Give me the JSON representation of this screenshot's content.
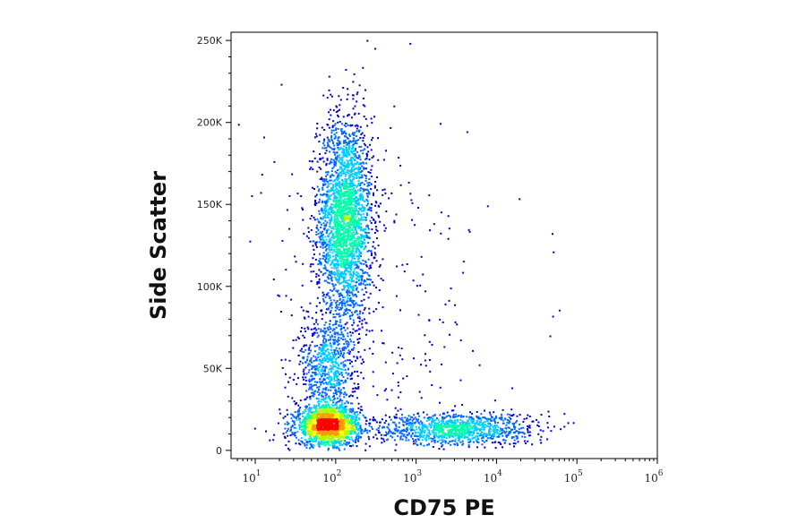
{
  "chart_data": {
    "type": "scatter",
    "xlabel": "CD75 PE",
    "ylabel": "Side Scatter",
    "x_scale": "log",
    "xlim": [
      5,
      1000000
    ],
    "ylim": [
      -5000,
      255000
    ],
    "x_ticks": [
      {
        "value": 10,
        "base": "10",
        "exp": "1"
      },
      {
        "value": 100,
        "base": "10",
        "exp": "2"
      },
      {
        "value": 1000,
        "base": "10",
        "exp": "3"
      },
      {
        "value": 10000,
        "base": "10",
        "exp": "4"
      },
      {
        "value": 100000,
        "base": "10",
        "exp": "5"
      },
      {
        "value": 1000000,
        "base": "10",
        "exp": "6"
      }
    ],
    "y_ticks": [
      {
        "value": 0,
        "label": "0"
      },
      {
        "value": 50000,
        "label": "50K"
      },
      {
        "value": 100000,
        "label": "100K"
      },
      {
        "value": 150000,
        "label": "150K"
      },
      {
        "value": 200000,
        "label": "200K"
      },
      {
        "value": 250000,
        "label": "250K"
      }
    ],
    "density_colormap": [
      "#0000cc",
      "#0066ff",
      "#00ccff",
      "#00ffaa",
      "#aaff00",
      "#ffff00",
      "#ff9900",
      "#ff0000"
    ],
    "populations": [
      {
        "x_center": 130,
        "x_sigma_log10": 0.17,
        "y_center": 140000,
        "y_sigma": 32000,
        "points": 2600
      },
      {
        "x_center": 80,
        "x_sigma_log10": 0.2,
        "y_center": 15000,
        "y_sigma": 6000,
        "points": 1700
      },
      {
        "x_center": 80,
        "x_sigma_log10": 0.18,
        "y_center": 50000,
        "y_sigma": 16000,
        "points": 700
      },
      {
        "x_center": 3000,
        "x_sigma_log10": 0.5,
        "y_center": 13000,
        "y_sigma": 5000,
        "points": 1100
      },
      {
        "x_center": 300,
        "x_sigma_log10": 0.7,
        "y_center": 90000,
        "y_sigma": 60000,
        "points": 300
      }
    ]
  }
}
